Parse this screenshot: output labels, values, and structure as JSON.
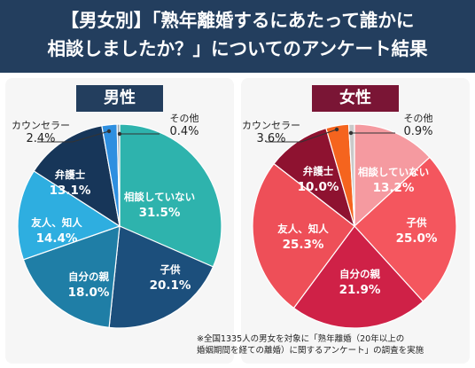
{
  "title": {
    "line1": "【男女別】「熟年離婚するにあたって誰かに",
    "line2": "相談しましたか？」についてのアンケート結果"
  },
  "colors": {
    "title_bg": "#233e5e",
    "male_badge": "#233e5e",
    "female_badge": "#7a1535"
  },
  "chart_data": [
    {
      "type": "pie",
      "title": "男性",
      "unit": "%",
      "slices": [
        {
          "label": "相談していない",
          "value": 31.5,
          "display": "31.5%",
          "color": "#2eb3ad"
        },
        {
          "label": "子供",
          "value": 20.1,
          "display": "20.1%",
          "color": "#1c4f7c"
        },
        {
          "label": "自分の親",
          "value": 18.0,
          "display": "18.0%",
          "color": "#1f7ea6"
        },
        {
          "label": "友人、知人",
          "value": 14.4,
          "display": "14.4%",
          "color": "#2eaee0"
        },
        {
          "label": "弁護士",
          "value": 13.1,
          "display": "13.1%",
          "color": "#173659"
        },
        {
          "label": "カウンセラー",
          "value": 2.4,
          "display": "2.4%",
          "color": "#2e8fe0"
        },
        {
          "label": "その他",
          "value": 0.4,
          "display": "0.4%",
          "color": "#9aa3ad"
        }
      ]
    },
    {
      "type": "pie",
      "title": "女性",
      "unit": "%",
      "slices": [
        {
          "label": "相談していない",
          "value": 13.2,
          "display": "13.2%",
          "color": "#f59aa0"
        },
        {
          "label": "子供",
          "value": 25.0,
          "display": "25.0%",
          "color": "#f4565e"
        },
        {
          "label": "自分の親",
          "value": 21.9,
          "display": "21.9%",
          "color": "#cf2147"
        },
        {
          "label": "友人、知人",
          "value": 25.3,
          "display": "25.3%",
          "color": "#ee4f58"
        },
        {
          "label": "弁護士",
          "value": 10.0,
          "display": "10.0%",
          "color": "#8e1230"
        },
        {
          "label": "カウンセラー",
          "value": 3.6,
          "display": "3.6%",
          "color": "#f5641e"
        },
        {
          "label": "その他",
          "value": 0.9,
          "display": "0.9%",
          "color": "#c9c9c9"
        }
      ]
    }
  ],
  "footnote": {
    "line1": "※全国1335人の男女を対象に「熟年離婚（20年以上の",
    "line2": "婚姻期間を経ての離婚）に関するアンケート」の調査を実施"
  }
}
